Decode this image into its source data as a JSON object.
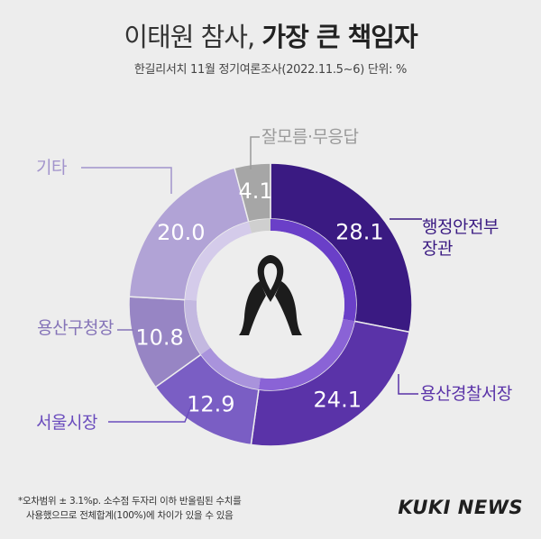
{
  "header": {
    "title_light": "이태원 참사,",
    "title_bold": "가장 큰 책임자",
    "subtitle": "한길리서치 11월 정기여론조사(2022.11.5~6) 단위: %"
  },
  "colors": {
    "background": "#ededed",
    "inner_ring": "#d9d2e8",
    "inner_hole": "#ededed",
    "leader_line": "#888888",
    "ribbon": "#1c1c1c"
  },
  "chart_data": {
    "type": "pie",
    "donut": true,
    "unit": "%",
    "slices": [
      {
        "label": "행정안전부 장관",
        "label_lines": [
          "행정안전부",
          "장관"
        ],
        "value": 28.1,
        "value_text": "28.1",
        "color": "#3a1a82",
        "inner_color": "#6a3fc8",
        "label_color": "#3a1a82"
      },
      {
        "label": "용산경찰서장",
        "label_lines": [
          "용산경찰서장"
        ],
        "value": 24.1,
        "value_text": "24.1",
        "color": "#5a33a8",
        "inner_color": "#8a63d6",
        "label_color": "#5a33a8"
      },
      {
        "label": "서울시장",
        "label_lines": [
          "서울시장"
        ],
        "value": 12.9,
        "value_text": "12.9",
        "color": "#7a5ec4",
        "inner_color": "#a993dc",
        "label_color": "#6a4cbd"
      },
      {
        "label": "용산구청장",
        "label_lines": [
          "용산구청장"
        ],
        "value": 10.8,
        "value_text": "10.8",
        "color": "#9785c4",
        "inner_color": "#c3b8e0",
        "label_color": "#8574b8"
      },
      {
        "label": "기타",
        "label_lines": [
          "기타"
        ],
        "value": 20.0,
        "value_text": "20.0",
        "color": "#b1a3d6",
        "inner_color": "#d4cbea",
        "label_color": "#a294cc"
      },
      {
        "label": "잘모름·무응답",
        "label_lines": [
          "잘모름·무응답"
        ],
        "value": 4.1,
        "value_text": "4.1",
        "color": "#a6a6a6",
        "inner_color": "#cfcfcf",
        "label_color": "#9a9a9a"
      }
    ]
  },
  "footer": {
    "note_line1": "*오차범위 ± 3.1%p. 소수점 두자리 이하 반올림된 수치를",
    "note_line2": "사용했으므로 전체합계(100%)에 차이가 있을 수 있음",
    "logo": "KUKI NEWS"
  }
}
